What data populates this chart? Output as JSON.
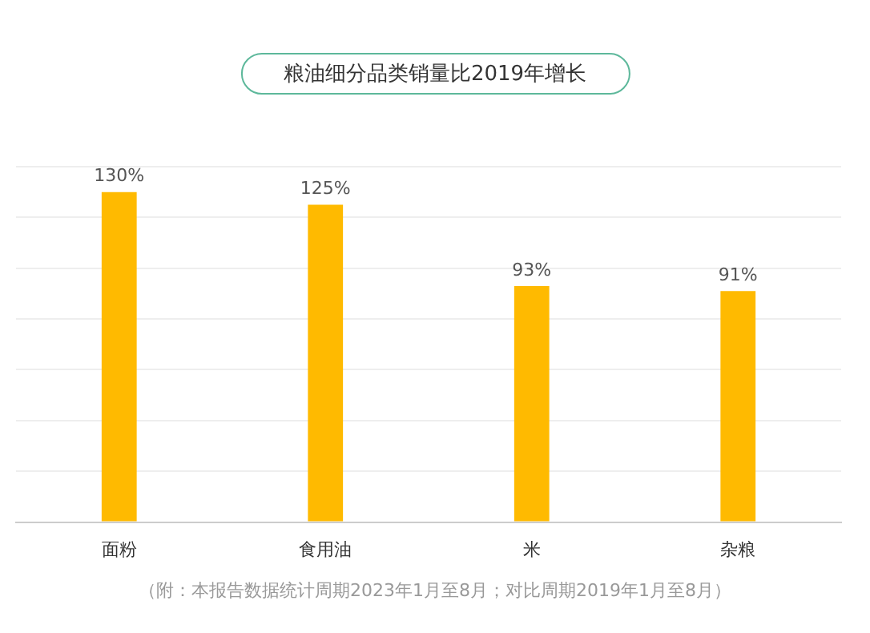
{
  "chart_data": {
    "type": "bar",
    "title": "粮油细分品类销量比2019年增长",
    "categories": [
      "面粉",
      "食用油",
      "米",
      "杂粮"
    ],
    "values": [
      130,
      125,
      93,
      91
    ],
    "value_labels": [
      "130%",
      "125%",
      "93%",
      "91%"
    ],
    "color": "#ffba00",
    "ylim": [
      0,
      140
    ],
    "yticks": [
      0,
      20,
      40,
      60,
      80,
      100,
      120,
      140
    ],
    "tick_labels": "x",
    "grid": "y",
    "legend": false,
    "annotations": [
      "（附：本报告数据统计周期2023年1月至8月；对比周期2019年1月至8月）"
    ]
  }
}
